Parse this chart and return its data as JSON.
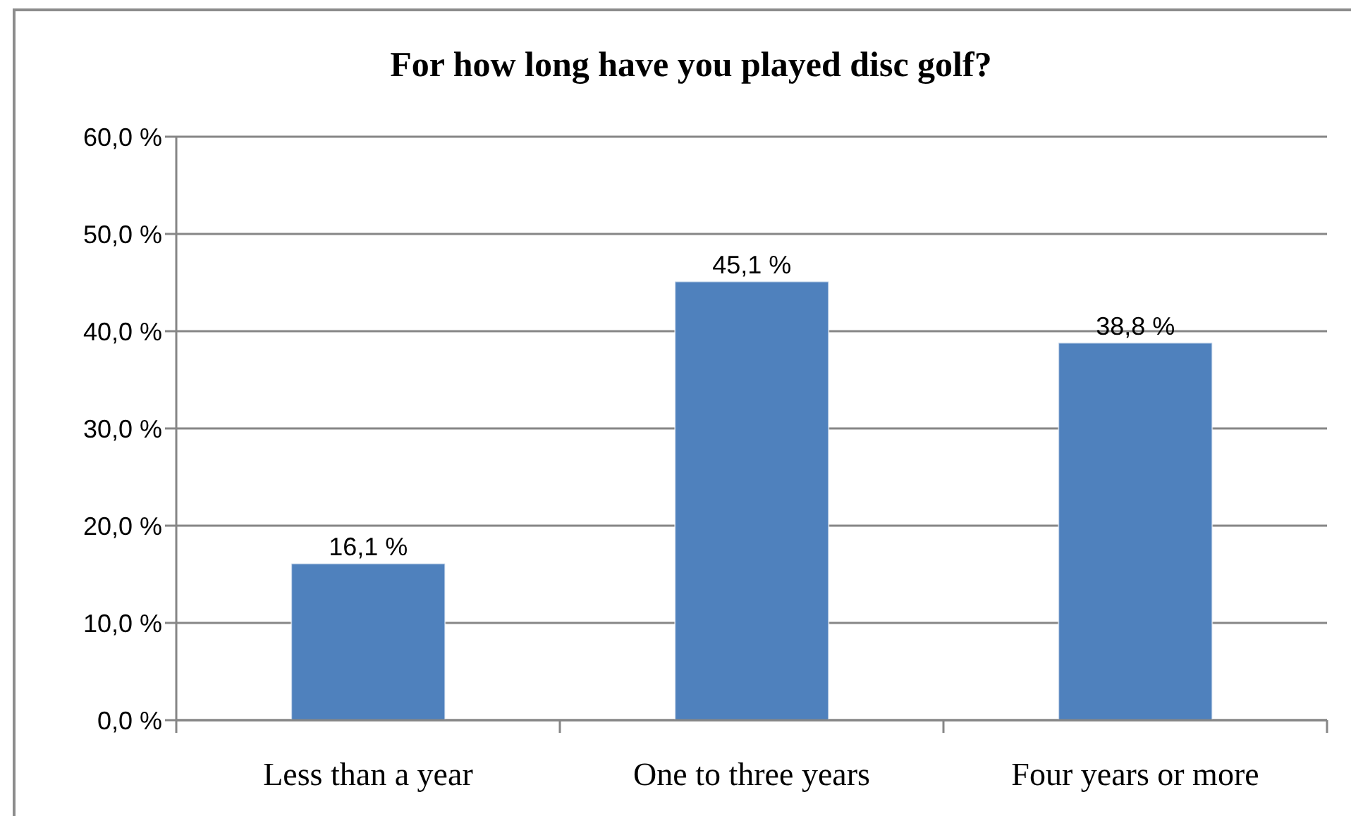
{
  "chart_data": {
    "type": "bar",
    "title": "For how long have you played disc golf?",
    "categories": [
      "Less than a year",
      "One to three years",
      "Four years or more"
    ],
    "values": [
      16.1,
      45.1,
      38.8
    ],
    "color": "#4f81bd",
    "value_labels": [
      "16,1 %",
      "45,1 %",
      "38,8 %"
    ],
    "ylim": [
      0,
      60
    ],
    "yticks": [
      {
        "value": 0,
        "label": "0,0 %"
      },
      {
        "value": 10,
        "label": "10,0 %"
      },
      {
        "value": 20,
        "label": "20,0 %"
      },
      {
        "value": 30,
        "label": "30,0 %"
      },
      {
        "value": 40,
        "label": "40,0 %"
      },
      {
        "value": 50,
        "label": "50,0 %"
      },
      {
        "value": 60,
        "label": "60,0 %"
      }
    ],
    "grid": "y"
  }
}
